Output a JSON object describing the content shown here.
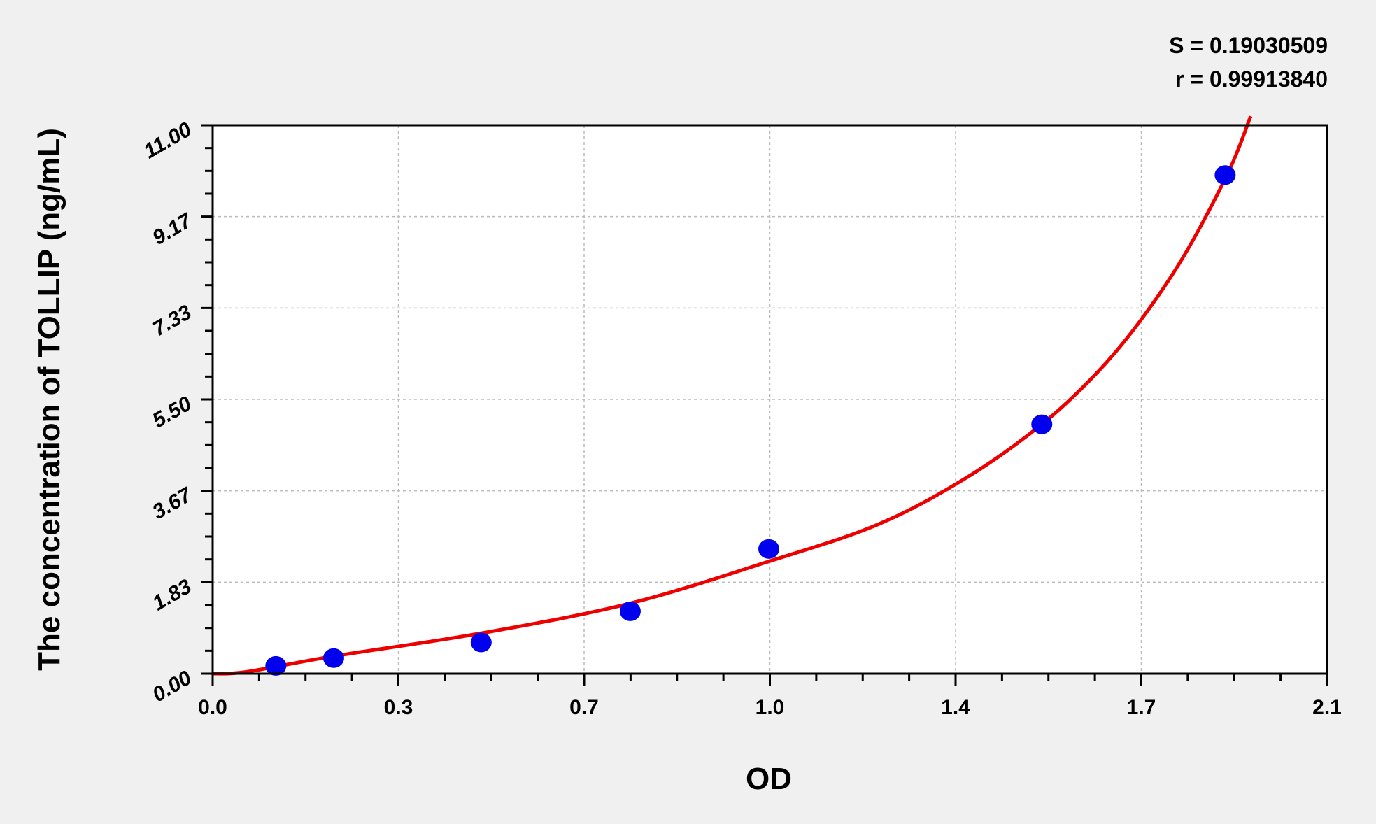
{
  "chart_data": {
    "type": "scatter",
    "title": "",
    "xlabel": "OD",
    "ylabel": "The concentration of TOLLIP (ng/mL)",
    "xlim": [
      0,
      2.1
    ],
    "ylim": [
      0,
      11
    ],
    "x_ticks": [
      0,
      0.35,
      0.7,
      1.05,
      1.4,
      1.75,
      2.1
    ],
    "x_tick_labels": [
      "0.0",
      "0.3",
      "0.7",
      "1.0",
      "1.4",
      "1.7",
      "2.1"
    ],
    "y_ticks": [
      0,
      1.833,
      3.667,
      5.5,
      7.333,
      9.167,
      11
    ],
    "y_tick_labels": [
      "0.00",
      "1.83",
      "3.67",
      "5.50",
      "7.33",
      "9.17",
      "11.00"
    ],
    "grid": true,
    "annotations": [
      "S = 0.19030509",
      "r = 0.99913840"
    ],
    "points": {
      "color": "#0000ee",
      "x": [
        0.119,
        0.228,
        0.506,
        0.787,
        1.048,
        1.5625,
        1.908
      ],
      "y": [
        0.156,
        0.312,
        0.625,
        1.25,
        2.5,
        5.0,
        10.0
      ]
    },
    "fit_curve": {
      "color": "#ee0000",
      "x": [
        0,
        0.063,
        0.228,
        0.506,
        0.787,
        1.048,
        1.253,
        1.419,
        1.5625,
        1.667,
        1.749,
        1.832,
        1.915,
        1.956
      ],
      "y": [
        0,
        0.035,
        0.35,
        0.81,
        1.41,
        2.25,
        2.99,
        3.92,
        5.0,
        6.04,
        7.09,
        8.41,
        10.08,
        11.18
      ]
    }
  }
}
